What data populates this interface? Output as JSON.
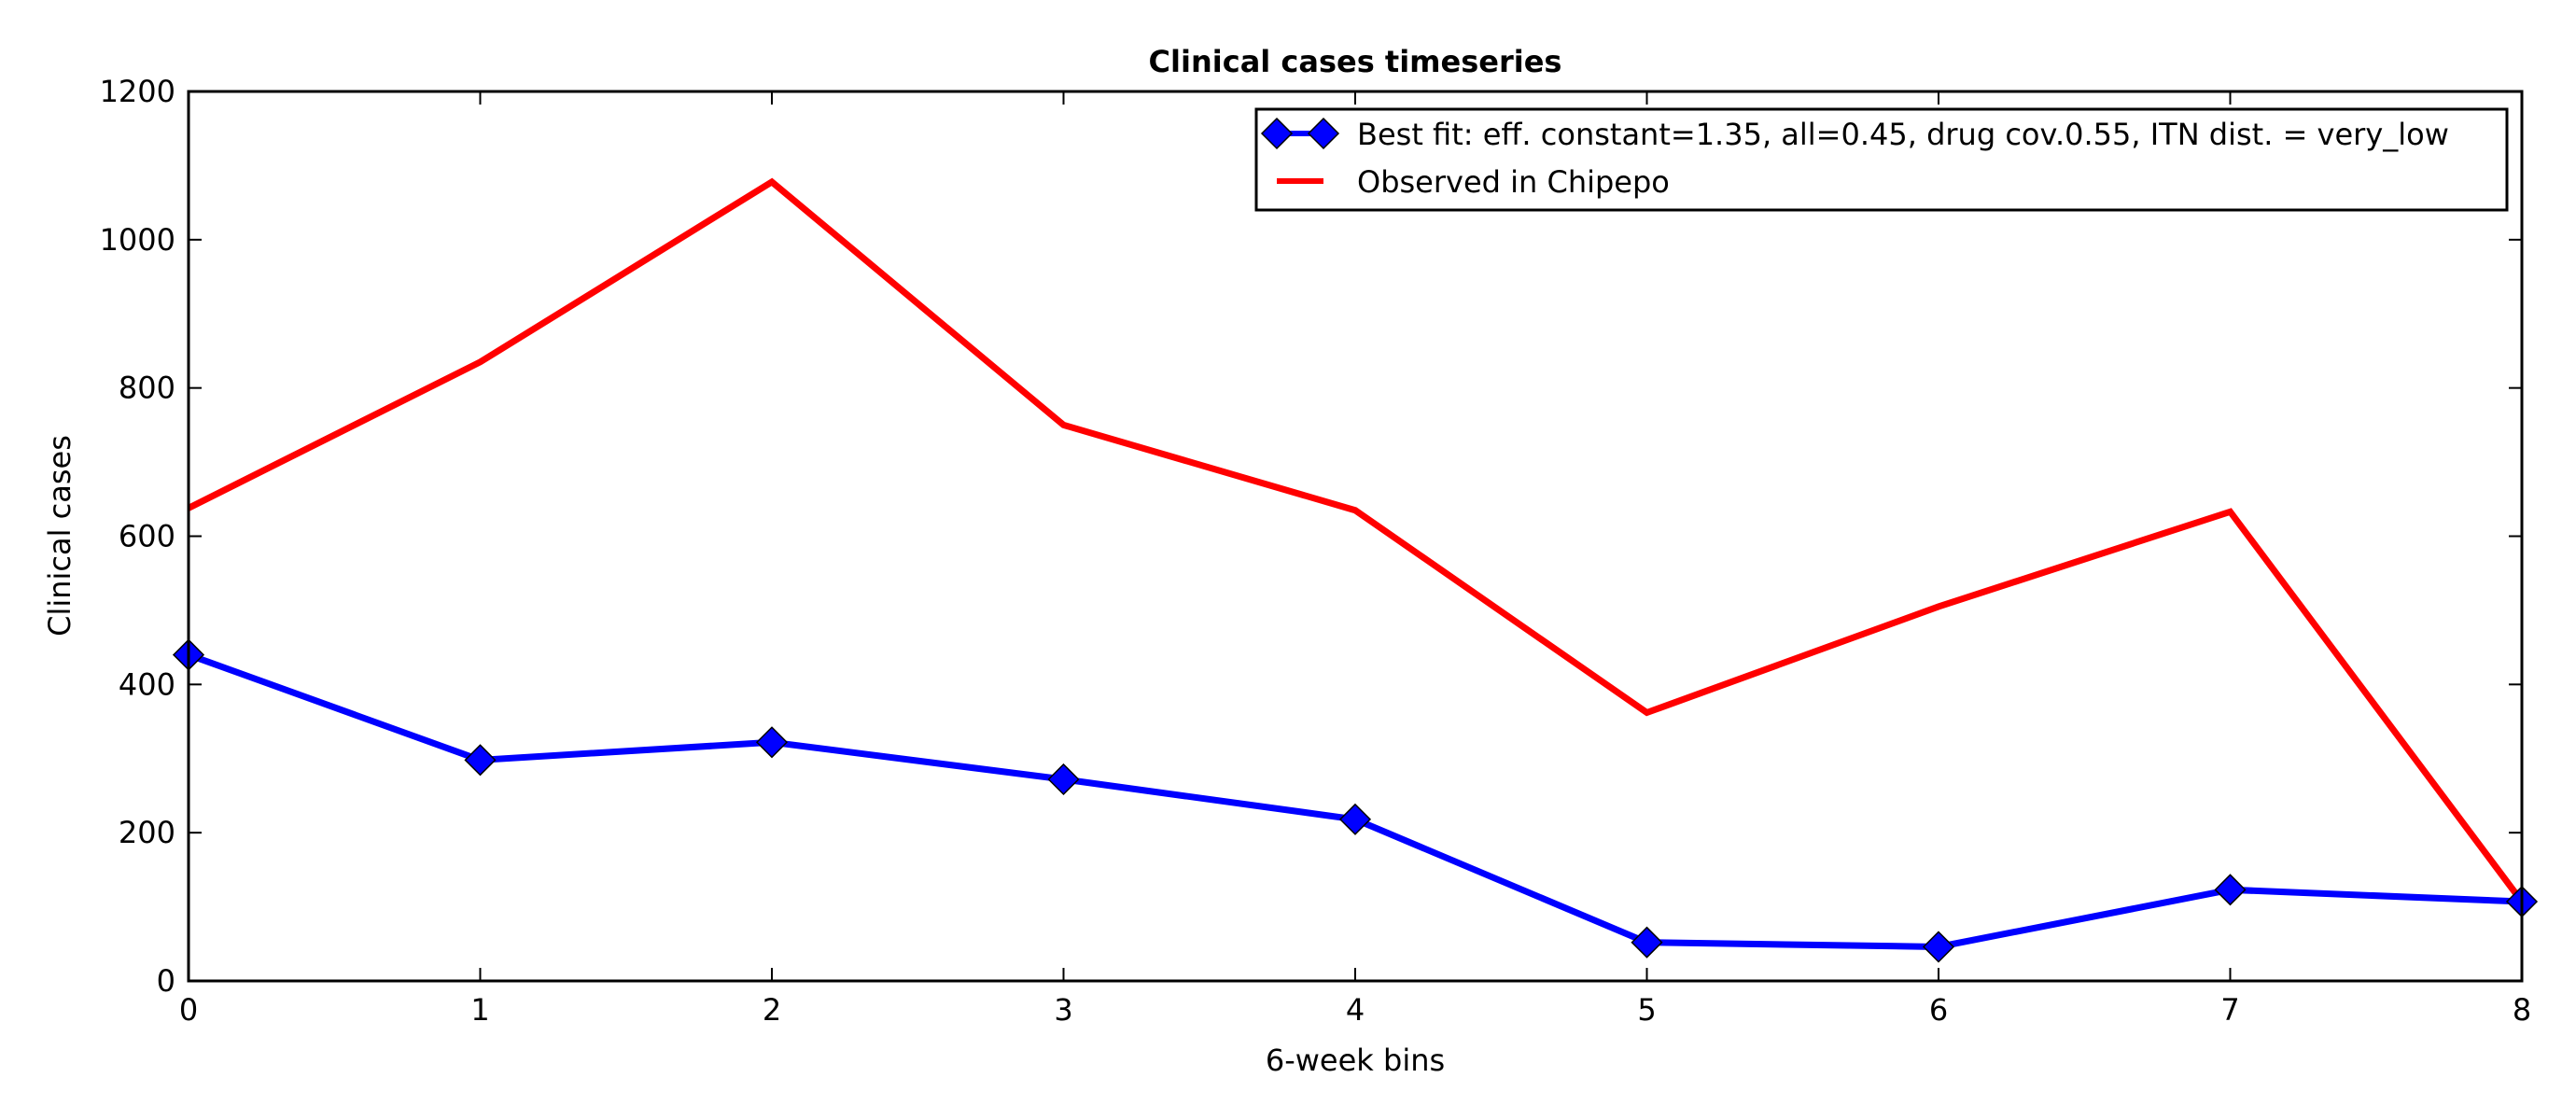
{
  "chart_data": {
    "type": "line",
    "title": "Clinical cases timeseries",
    "xlabel": "6-week bins",
    "ylabel": "Clinical cases",
    "xlim": [
      0,
      8
    ],
    "ylim": [
      0,
      1200
    ],
    "x_ticks": [
      "0",
      "1",
      "2",
      "3",
      "4",
      "5",
      "6",
      "7",
      "8"
    ],
    "y_ticks": [
      "0",
      "200",
      "400",
      "600",
      "800",
      "1000",
      "1200"
    ],
    "grid": false,
    "legend_position": "top-right",
    "x": [
      0,
      1,
      2,
      3,
      4,
      5,
      6,
      7,
      8
    ],
    "series": [
      {
        "name": "Best fit: eff. constant=1.35, all=0.45, drug cov.0.55, ITN dist. = very_low",
        "color": "#0000ff",
        "marker": "diamond",
        "values": [
          440,
          298,
          322,
          272,
          218,
          52,
          46,
          123,
          107
        ]
      },
      {
        "name": "Observed in Chipepo",
        "color": "#ff0000",
        "marker": "none",
        "values": [
          638,
          835,
          1078,
          750,
          635,
          362,
          505,
          633,
          107
        ]
      }
    ]
  }
}
